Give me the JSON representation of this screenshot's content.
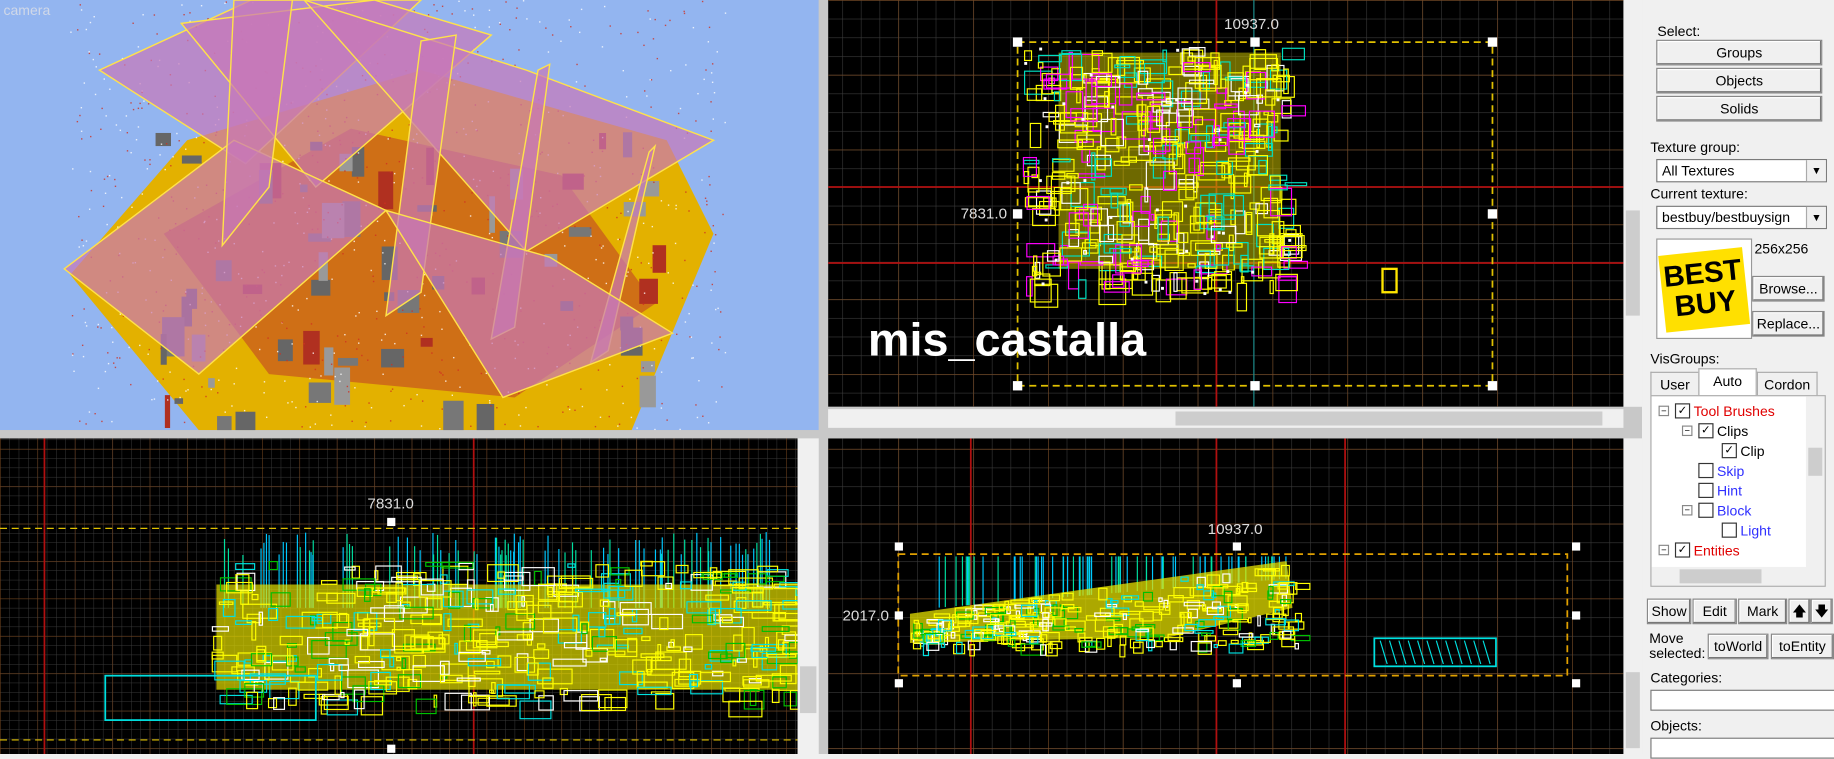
{
  "viewports": {
    "camera": {
      "label": "camera"
    },
    "top": {
      "top_label": "10937.0",
      "left_label": "7831.0",
      "map_name": "mis_castalla"
    },
    "front": {
      "top_label": "7831.0"
    },
    "side": {
      "top_label": "10937.0",
      "left_label": "2017.0"
    }
  },
  "panel": {
    "select": {
      "label": "Select:",
      "buttons": [
        "Groups",
        "Objects",
        "Solids"
      ]
    },
    "texture_group": {
      "label": "Texture group:",
      "value": "All Textures"
    },
    "current_texture": {
      "label": "Current texture:",
      "value": "bestbuy/bestbuysign",
      "size": "256x256",
      "logo": [
        "BEST",
        "BUY"
      ],
      "buttons": [
        "Browse...",
        "Replace..."
      ]
    },
    "visgroups": {
      "label": "VisGroups:",
      "tabs": [
        "User",
        "Auto",
        "Cordon"
      ],
      "tree": [
        "Tool Brushes",
        "Clips",
        "Clip",
        "Skip",
        "Hint",
        "Block",
        "Light",
        "Entities"
      ],
      "buttons": [
        "Show",
        "Edit",
        "Mark"
      ]
    },
    "move": {
      "label": "Move selected:",
      "buttons": [
        "toWorld",
        "toEntity"
      ]
    },
    "categories": {
      "label": "Categories:"
    },
    "objects": {
      "label": "Objects:"
    }
  }
}
